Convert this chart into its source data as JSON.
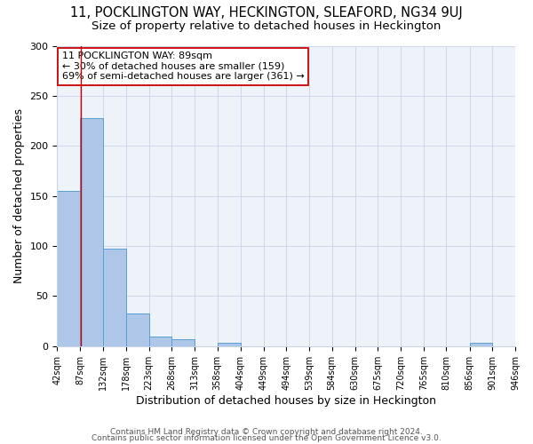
{
  "title1": "11, POCKLINGTON WAY, HECKINGTON, SLEAFORD, NG34 9UJ",
  "title2": "Size of property relative to detached houses in Heckington",
  "xlabel": "Distribution of detached houses by size in Heckington",
  "ylabel": "Number of detached properties",
  "bin_edges": [
    42,
    87,
    132,
    178,
    223,
    268,
    313,
    358,
    404,
    449,
    494,
    539,
    584,
    630,
    675,
    720,
    765,
    810,
    856,
    901,
    946
  ],
  "bar_heights": [
    155,
    228,
    97,
    33,
    10,
    7,
    0,
    3,
    0,
    0,
    0,
    0,
    0,
    0,
    0,
    0,
    0,
    0,
    3,
    0
  ],
  "bar_color": "#aec6e8",
  "bar_edge_color": "#5a9fd4",
  "property_size": 89,
  "property_line_color": "#cc0000",
  "annotation_line1": "11 POCKLINGTON WAY: 89sqm",
  "annotation_line2": "← 30% of detached houses are smaller (159)",
  "annotation_line3": "69% of semi-detached houses are larger (361) →",
  "annotation_box_color": "#ffffff",
  "annotation_box_edge_color": "#cc0000",
  "ylim": [
    0,
    300
  ],
  "yticks": [
    0,
    50,
    100,
    150,
    200,
    250,
    300
  ],
  "footer1": "Contains HM Land Registry data © Crown copyright and database right 2024.",
  "footer2": "Contains public sector information licensed under the Open Government Licence v3.0.",
  "bg_color": "#eef2f9",
  "title1_fontsize": 10.5,
  "title2_fontsize": 9.5,
  "annotation_fontsize": 8,
  "tick_fontsize": 7,
  "axis_label_fontsize": 9,
  "footer_fontsize": 6.5
}
